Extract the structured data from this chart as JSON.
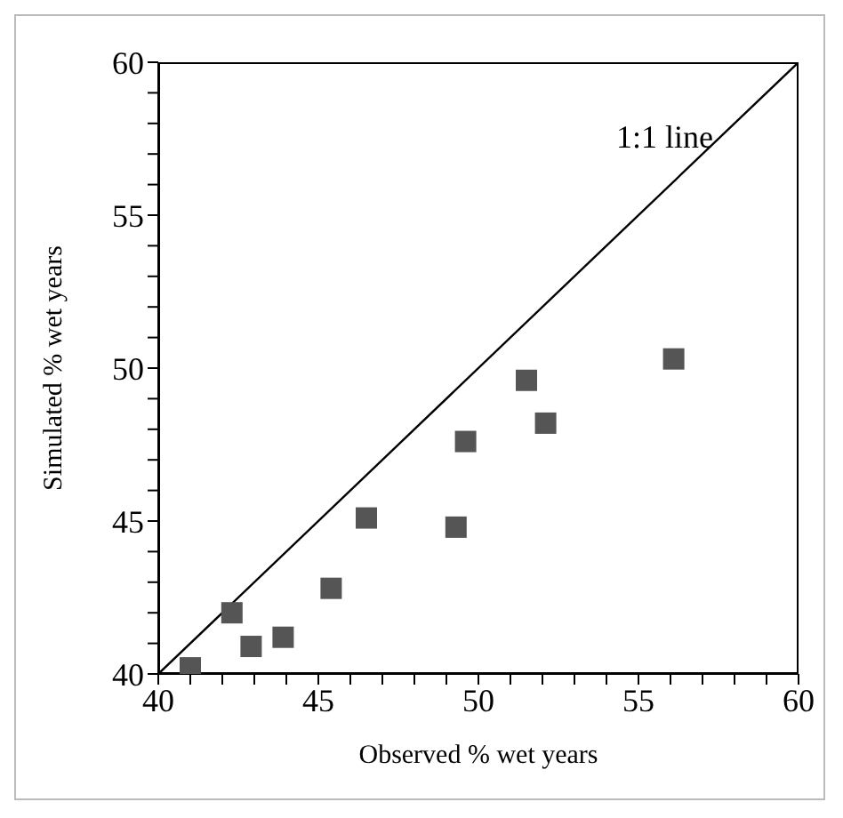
{
  "chart_data": {
    "type": "scatter",
    "xlabel": "Observed % wet years",
    "ylabel": "Simulated % wet years",
    "xlim": [
      40,
      60
    ],
    "ylim": [
      40,
      60
    ],
    "xticks": [
      40,
      {
        "value": 41,
        "label": null
      },
      {
        "value": 42,
        "label": null
      },
      {
        "value": 43,
        "label": null
      },
      {
        "value": 44,
        "label": null
      },
      45,
      {
        "value": 46,
        "label": null
      },
      {
        "value": 47,
        "label": null
      },
      {
        "value": 48,
        "label": null
      },
      {
        "value": 49,
        "label": null
      },
      50,
      {
        "value": 51,
        "label": null
      },
      {
        "value": 52,
        "label": null
      },
      {
        "value": 53,
        "label": null
      },
      {
        "value": 54,
        "label": null
      },
      55,
      {
        "value": 56,
        "label": null
      },
      {
        "value": 57,
        "label": null
      },
      {
        "value": 58,
        "label": null
      },
      {
        "value": 59,
        "label": null
      },
      60
    ],
    "yticks": [
      40,
      {
        "value": 41,
        "label": null
      },
      {
        "value": 42,
        "label": null
      },
      {
        "value": 43,
        "label": null
      },
      {
        "value": 44,
        "label": null
      },
      45,
      {
        "value": 46,
        "label": null
      },
      {
        "value": 47,
        "label": null
      },
      {
        "value": 48,
        "label": null
      },
      {
        "value": 49,
        "label": null
      },
      50,
      {
        "value": 51,
        "label": null
      },
      {
        "value": 52,
        "label": null
      },
      {
        "value": 53,
        "label": null
      },
      {
        "value": 54,
        "label": null
      },
      55,
      {
        "value": 56,
        "label": null
      },
      {
        "value": 57,
        "label": null
      },
      {
        "value": 58,
        "label": null
      },
      {
        "value": 59,
        "label": null
      },
      60
    ],
    "annotations": [
      "1:1 line"
    ],
    "series": [
      {
        "marker": "square",
        "color": "#555555",
        "x": [
          41.0,
          42.3,
          42.9,
          43.9,
          45.4,
          46.5,
          49.3,
          49.6,
          51.5,
          52.1,
          56.1
        ],
        "values": [
          40.2,
          42.0,
          40.9,
          41.2,
          42.8,
          45.1,
          44.8,
          47.6,
          49.6,
          48.2,
          50.3
        ]
      },
      {
        "type": "line",
        "color": "#000000",
        "x": [
          40,
          60
        ],
        "values": [
          40,
          60
        ]
      }
    ]
  }
}
